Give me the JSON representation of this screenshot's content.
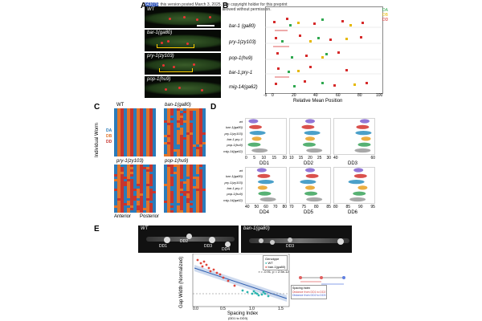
{
  "banner": {
    "doi_fragment": "643079",
    "text": "; this version posted March 3, 2025. The copyright holder for this preprint",
    "text2": "author/funder. All rights reserved. No reuse allowed without permission."
  },
  "panel_labels": [
    "A",
    "B",
    "C",
    "D",
    "E"
  ],
  "panelA": {
    "images": [
      {
        "label": "WT"
      },
      {
        "label": "bar-1(ga80)"
      },
      {
        "label": "pry-1(zy103)"
      },
      {
        "label": "pop-1(hu9)"
      }
    ]
  },
  "panelB": {
    "legend": [
      "DA",
      "DB",
      "DD"
    ],
    "legend_colors": [
      "#2fa84f",
      "#e6b800",
      "#d62a2a"
    ],
    "rows": [
      "bar-1 (ga80)",
      "pry-1(zy103)",
      "pop-1(hu9)",
      "bar-1;pry-1",
      "mig-14(ga62)"
    ],
    "x_ticks": [
      "-5",
      "0",
      "20",
      "40",
      "60",
      "80",
      "100"
    ],
    "x_label": "Relative Mean Position"
  },
  "panelC": {
    "titles": [
      "WT",
      "ban-1(ga80)",
      "pry-1(zy103)",
      "pop-1(hu9)"
    ],
    "y_label": "Individual Worm",
    "legend": [
      "DA",
      "DB",
      "DD"
    ],
    "legend_colors": [
      "#2b7bba",
      "#e0732a",
      "#c7352f"
    ],
    "x_left": "Anterior",
    "x_right": "Posterior"
  },
  "panelD": {
    "rows": [
      "wt",
      "bar-1(ga80)",
      "pry-1(zy103)",
      "bar-1;pry-1",
      "pop-1(hu9)",
      "mig-14(ga62)"
    ],
    "row_colors": [
      "#7f5fd0",
      "#d3322e",
      "#2b8fbf",
      "#e8a020",
      "#3aa35a",
      "#9a9a9a"
    ],
    "plots": [
      {
        "title": "DD1",
        "ticks": [
          "0",
          "5",
          "10",
          "15",
          "20"
        ]
      },
      {
        "title": "DD2",
        "ticks": [
          "10",
          "15",
          "20",
          "25",
          "30"
        ]
      },
      {
        "title": "DD3",
        "ticks": [
          "40",
          "60"
        ]
      },
      {
        "title": "DD4",
        "ticks": [
          "40",
          "50",
          "60",
          "70",
          "80"
        ]
      },
      {
        "title": "DD5",
        "ticks": [
          "70",
          "75",
          "80",
          "85"
        ]
      },
      {
        "title": "DD6",
        "ticks": [
          "80",
          "85",
          "90",
          "95"
        ]
      }
    ]
  },
  "panelE": {
    "images": [
      {
        "label": "WT",
        "cells": [
          "DD1",
          "DD2",
          "DD3",
          "DD4"
        ]
      },
      {
        "label": "ban-1(ga80)",
        "cells": [
          "DD3"
        ]
      }
    ],
    "scatter": {
      "x_label": "Spacing Index",
      "x_sublabel": "(DD1 to DD3)",
      "y_label": "Gap Width (Normalized)",
      "x_ticks": [
        "0.0",
        "0.5",
        "1.0",
        "1.5"
      ],
      "legend_title": "Genotype",
      "legend": [
        "WT",
        "ban-1(ga80)"
      ],
      "legend_colors": [
        "#2bb5b0",
        "#e0453a"
      ],
      "stat": "r = -0.91, p = 2.5e-12",
      "diagram_note": "Spacing Index",
      "diagram_lines": [
        "Distance from DD1 to DD2",
        "Distance from DD2 to DD3"
      ]
    }
  }
}
